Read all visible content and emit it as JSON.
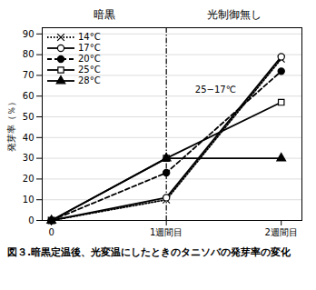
{
  "chart_data": {
    "type": "line",
    "ylabel": "発芽率（％）",
    "x": [
      0,
      1,
      2
    ],
    "xlim": [
      -0.08,
      2.18
    ],
    "xticks": [
      0,
      {
        "value": 1,
        "label": "1週間目"
      },
      {
        "value": 2,
        "label": "2週間目"
      }
    ],
    "ylim": [
      0,
      93
    ],
    "yticks": [
      0,
      10,
      20,
      30,
      40,
      50,
      60,
      70,
      80,
      90
    ],
    "grid": "y",
    "legend": "upper left",
    "series": [
      {
        "name": "14°C",
        "color": "#000000",
        "values": [
          0,
          10,
          78
        ],
        "marker": "x",
        "line_style": "dotted"
      },
      {
        "name": "17°C",
        "color": "#000000",
        "values": [
          0,
          11,
          79
        ],
        "marker": "circle_open",
        "line_style": "solid"
      },
      {
        "name": "20°C",
        "color": "#000000",
        "values": [
          0,
          23,
          72
        ],
        "marker": "circle",
        "line_style": "dashed"
      },
      {
        "name": "25°C",
        "color": "#000000",
        "values": [
          0,
          30,
          57
        ],
        "marker": "square_open",
        "line_style": "solid"
      },
      {
        "name": "28°C",
        "color": "#000000",
        "values": [
          0,
          30,
          30
        ],
        "marker": "triangle",
        "line_style": "solid"
      }
    ],
    "vline": {
      "x": 1,
      "color": "#000000",
      "line_style": "dashdot"
    },
    "region_labels": [
      "暗黒",
      "光制御無し"
    ],
    "annotations": [
      {
        "text": "25−17℃",
        "x": 1.25,
        "y": 63
      }
    ],
    "caption": [
      "図３.暗黒定温後、光変温にしたときのタニソバの発芽率の変化"
    ]
  }
}
